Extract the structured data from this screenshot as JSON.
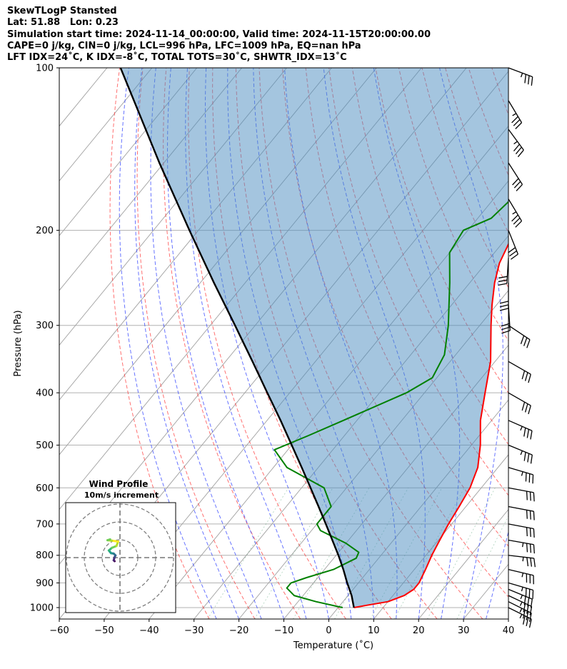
{
  "header": {
    "line1": "SkewTLogP Stansted",
    "line2": "Lat: 51.88   Lon: 0.23",
    "line3": "Simulation start time: 2024-11-14_00:00:00, Valid time: 2024-11-15T20:00:00.00",
    "line4": "CAPE=0 j/kg, CIN=0 j/kg, LCL=996 hPa, LFC=1009 hPa, EQ=nan hPa",
    "line5": "LFT IDX=24˚C, K IDX=-8˚C, TOTAL TOTS=30˚C, SHWTR_IDX=13˚C"
  },
  "chart_data": {
    "type": "skewt",
    "xlabel": "Temperature (˚C)",
    "ylabel": "Pressure (hPa)",
    "xlim": [
      -60,
      40
    ],
    "ylim": [
      1050,
      100
    ],
    "y_scale": "log",
    "x_ticks": [
      -60,
      -50,
      -40,
      -30,
      -20,
      -10,
      0,
      10,
      20,
      30,
      40
    ],
    "y_ticks": [
      1000,
      900,
      800,
      700,
      600,
      500,
      400,
      300,
      200,
      100
    ],
    "grid": true,
    "temperature": {
      "color": "#ff0000",
      "points": [
        [
          1000,
          3.5
        ],
        [
          990,
          6
        ],
        [
          975,
          10
        ],
        [
          950,
          12.5
        ],
        [
          925,
          13.5
        ],
        [
          900,
          13.5
        ],
        [
          850,
          12.5
        ],
        [
          800,
          11.3
        ],
        [
          750,
          10.3
        ],
        [
          700,
          9.3
        ],
        [
          650,
          8.5
        ],
        [
          600,
          7.5
        ],
        [
          550,
          5.5
        ],
        [
          500,
          2
        ],
        [
          450,
          -2.5
        ],
        [
          400,
          -6.5
        ],
        [
          350,
          -11
        ],
        [
          300,
          -17.5
        ],
        [
          275,
          -21
        ],
        [
          250,
          -24.5
        ],
        [
          230,
          -27
        ],
        [
          200,
          -29.5
        ],
        [
          185,
          -29.5
        ],
        [
          170,
          -31.5
        ],
        [
          155,
          -34.5
        ],
        [
          140,
          -36
        ],
        [
          125,
          -38
        ],
        [
          115,
          -38
        ],
        [
          100,
          -40
        ]
      ]
    },
    "dewpoint": {
      "color": "#008000",
      "points": [
        [
          1000,
          1
        ],
        [
          975,
          -6
        ],
        [
          950,
          -12
        ],
        [
          920,
          -15
        ],
        [
          900,
          -15
        ],
        [
          880,
          -12.5
        ],
        [
          850,
          -8
        ],
        [
          810,
          -5
        ],
        [
          790,
          -5.5
        ],
        [
          760,
          -10
        ],
        [
          720,
          -18
        ],
        [
          700,
          -20
        ],
        [
          650,
          -20
        ],
        [
          600,
          -25
        ],
        [
          550,
          -37
        ],
        [
          510,
          -43
        ],
        [
          480,
          -38
        ],
        [
          450,
          -33
        ],
        [
          400,
          -24
        ],
        [
          375,
          -21
        ],
        [
          340,
          -22.5
        ],
        [
          300,
          -27
        ],
        [
          250,
          -34.5
        ],
        [
          220,
          -40
        ],
        [
          200,
          -41
        ],
        [
          190,
          -37
        ],
        [
          160,
          -35
        ],
        [
          145,
          -36
        ],
        [
          130,
          -38
        ],
        [
          115,
          -37
        ],
        [
          100,
          -36
        ]
      ]
    },
    "parcel": {
      "color": "#000000",
      "points": [
        [
          1000,
          3.5
        ],
        [
          950,
          0.8
        ],
        [
          900,
          -2.5
        ],
        [
          850,
          -5.8
        ],
        [
          800,
          -9.5
        ],
        [
          750,
          -13.6
        ],
        [
          700,
          -18
        ],
        [
          650,
          -22.8
        ],
        [
          600,
          -28
        ],
        [
          550,
          -33.7
        ],
        [
          500,
          -40
        ],
        [
          450,
          -47
        ],
        [
          400,
          -55
        ],
        [
          350,
          -64
        ],
        [
          300,
          -74.5
        ],
        [
          250,
          -87
        ],
        [
          200,
          -102
        ],
        [
          150,
          -121
        ],
        [
          100,
          -147
        ]
      ]
    },
    "shaded_region": "parcel-to-temperature (blue)",
    "wind_barbs": [
      {
        "p": 1000,
        "u": -16,
        "v": 8
      },
      {
        "p": 975,
        "u": -16,
        "v": 8
      },
      {
        "p": 950,
        "u": -17,
        "v": 8
      },
      {
        "p": 925,
        "u": -17,
        "v": 7
      },
      {
        "p": 900,
        "u": -17,
        "v": 5
      },
      {
        "p": 850,
        "u": -17,
        "v": 4
      },
      {
        "p": 800,
        "u": -17,
        "v": 2
      },
      {
        "p": 750,
        "u": -17,
        "v": 3
      },
      {
        "p": 700,
        "u": -16,
        "v": 3
      },
      {
        "p": 650,
        "u": -16,
        "v": 3
      },
      {
        "p": 600,
        "u": -16,
        "v": 3
      },
      {
        "p": 550,
        "u": -17,
        "v": 5
      },
      {
        "p": 500,
        "u": -17,
        "v": 7
      },
      {
        "p": 450,
        "u": -16,
        "v": 7
      },
      {
        "p": 400,
        "u": -14,
        "v": 8
      },
      {
        "p": 350,
        "u": -14,
        "v": 8
      },
      {
        "p": 300,
        "u": -12,
        "v": 8
      },
      {
        "p": 275,
        "u": -1,
        "v": 16
      },
      {
        "p": 250,
        "u": 0,
        "v": 16
      },
      {
        "p": 225,
        "u": 1,
        "v": 16
      },
      {
        "p": 200,
        "u": -6,
        "v": 15
      },
      {
        "p": 175,
        "u": -9,
        "v": 15
      },
      {
        "p": 150,
        "u": -9,
        "v": 14
      },
      {
        "p": 130,
        "u": -11,
        "v": 15
      },
      {
        "p": 115,
        "u": -9,
        "v": 15
      },
      {
        "p": 100,
        "u": -16,
        "v": 6
      }
    ],
    "hodograph": {
      "title": "Wind Profile",
      "subtitle": "10m/s increment",
      "points_uv": [
        [
          -1.2,
          -0.8
        ],
        [
          -1.4,
          -0.6
        ],
        [
          -1.2,
          0.1
        ],
        [
          -1.0,
          0.5
        ],
        [
          -1.4,
          0.9
        ],
        [
          -2.0,
          1.0
        ],
        [
          -2.5,
          1.6
        ],
        [
          -1.8,
          2.2
        ],
        [
          -0.8,
          2.6
        ],
        [
          -0.4,
          3.6
        ],
        [
          -1.8,
          3.8
        ],
        [
          -2.8,
          3.9
        ],
        [
          -2.2,
          4.1
        ]
      ]
    }
  },
  "hodo": {
    "title": "Wind Profile",
    "subtitle": "10m/s increment"
  }
}
